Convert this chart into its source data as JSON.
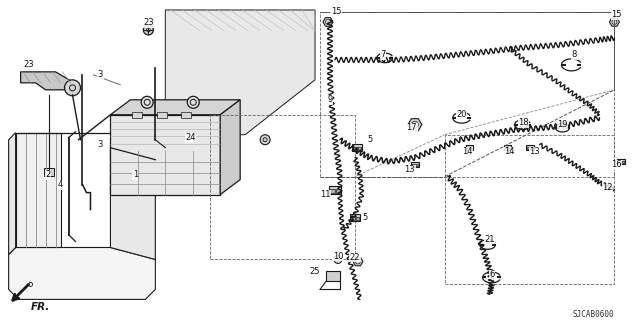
{
  "bg_color": "#f0f0f0",
  "diagram_code": "SJCAB0600",
  "line_color": "#1a1a1a",
  "text_color": "#111111",
  "font_size": 6.0,
  "lw_main": 0.9,
  "lw_thin": 0.6,
  "lw_cable": 1.1
}
